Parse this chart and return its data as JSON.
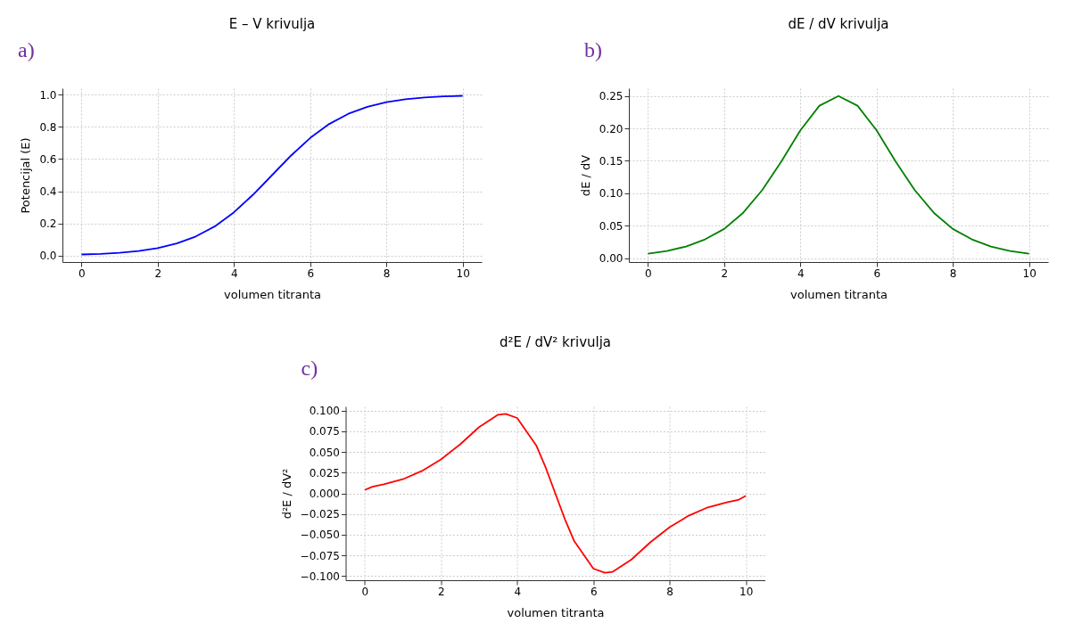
{
  "chart_data": [
    {
      "type": "line",
      "title": "E – V krivulja",
      "xlabel": "volumen titranta",
      "ylabel": "Potencijal (E)",
      "annotations": [
        "a)"
      ],
      "grid": true,
      "xlim": [
        -0.5,
        10.5
      ],
      "xticks": [
        0,
        2,
        4,
        6,
        8,
        10
      ],
      "ylim": [
        -0.04,
        1.04
      ],
      "yticks": [
        {
          "value": 0,
          "label": "0.0"
        },
        {
          "value": 0.2,
          "label": "0.2"
        },
        {
          "value": 0.4,
          "label": "0.4"
        },
        {
          "value": 0.6,
          "label": "0.6"
        },
        {
          "value": 0.8,
          "label": "0.8"
        },
        {
          "value": 1,
          "label": "1.0"
        }
      ],
      "series": [
        {
          "color": "#0000ff",
          "x": [
            0,
            0.5,
            1,
            1.5,
            2,
            2.5,
            3,
            3.5,
            4,
            4.5,
            5,
            5.5,
            6,
            6.5,
            7,
            7.5,
            8,
            8.5,
            9,
            9.5,
            10
          ],
          "values": [
            0.007,
            0.011,
            0.018,
            0.029,
            0.047,
            0.076,
            0.119,
            0.182,
            0.269,
            0.378,
            0.5,
            0.622,
            0.731,
            0.818,
            0.881,
            0.924,
            0.953,
            0.971,
            0.982,
            0.989,
            0.993
          ]
        }
      ]
    },
    {
      "type": "line",
      "title": "dE / dV krivulja",
      "xlabel": "volumen titranta",
      "ylabel": "dE / dV",
      "annotations": [
        "b)"
      ],
      "grid": true,
      "xlim": [
        -0.5,
        10.5
      ],
      "xticks": [
        0,
        2,
        4,
        6,
        8,
        10
      ],
      "ylim": [
        -0.006,
        0.262
      ],
      "yticks": [
        {
          "value": 0,
          "label": "0.00"
        },
        {
          "value": 0.05,
          "label": "0.05"
        },
        {
          "value": 0.1,
          "label": "0.10"
        },
        {
          "value": 0.15,
          "label": "0.15"
        },
        {
          "value": 0.2,
          "label": "0.20"
        },
        {
          "value": 0.25,
          "label": "0.25"
        }
      ],
      "series": [
        {
          "color": "#008000",
          "x": [
            0,
            0.5,
            1,
            1.5,
            2,
            2.5,
            3,
            3.5,
            4,
            4.5,
            5,
            5.5,
            6,
            6.5,
            7,
            7.5,
            8,
            8.5,
            9,
            9.5,
            10
          ],
          "values": [
            0.007,
            0.011,
            0.018,
            0.029,
            0.045,
            0.07,
            0.105,
            0.149,
            0.197,
            0.235,
            0.25,
            0.235,
            0.197,
            0.149,
            0.105,
            0.07,
            0.045,
            0.029,
            0.018,
            0.011,
            0.007
          ]
        }
      ]
    },
    {
      "type": "line",
      "title": "d²E / dV² krivulja",
      "xlabel": "volumen titranta",
      "ylabel": "d²E / dV²",
      "annotations": [
        "c)"
      ],
      "grid": true,
      "xlim": [
        -0.5,
        10.5
      ],
      "xticks": [
        0,
        2,
        4,
        6,
        8,
        10
      ],
      "ylim": [
        -0.105,
        0.105
      ],
      "yticks": [
        {
          "value": -0.1,
          "label": "−0.100"
        },
        {
          "value": -0.075,
          "label": "−0.075"
        },
        {
          "value": -0.05,
          "label": "−0.050"
        },
        {
          "value": -0.025,
          "label": "−0.025"
        },
        {
          "value": 0,
          "label": "0.000"
        },
        {
          "value": 0.025,
          "label": "0.025"
        },
        {
          "value": 0.05,
          "label": "0.050"
        },
        {
          "value": 0.075,
          "label": "0.075"
        },
        {
          "value": 0.1,
          "label": "0.100"
        }
      ],
      "series": [
        {
          "color": "#ff0000",
          "x": [
            0,
            0.2,
            0.5,
            1,
            1.5,
            2,
            2.5,
            3,
            3.5,
            3.7,
            4,
            4.5,
            4.75,
            5,
            5.25,
            5.5,
            6,
            6.3,
            6.5,
            7,
            7.5,
            8,
            8.5,
            9,
            9.5,
            9.8,
            10
          ],
          "values": [
            0.004,
            0.008,
            0.011,
            0.017,
            0.027,
            0.041,
            0.059,
            0.08,
            0.095,
            0.096,
            0.091,
            0.058,
            0.031,
            0.0,
            -0.031,
            -0.058,
            -0.091,
            -0.096,
            -0.095,
            -0.08,
            -0.059,
            -0.041,
            -0.027,
            -0.017,
            -0.011,
            -0.008,
            -0.003
          ]
        }
      ]
    }
  ]
}
